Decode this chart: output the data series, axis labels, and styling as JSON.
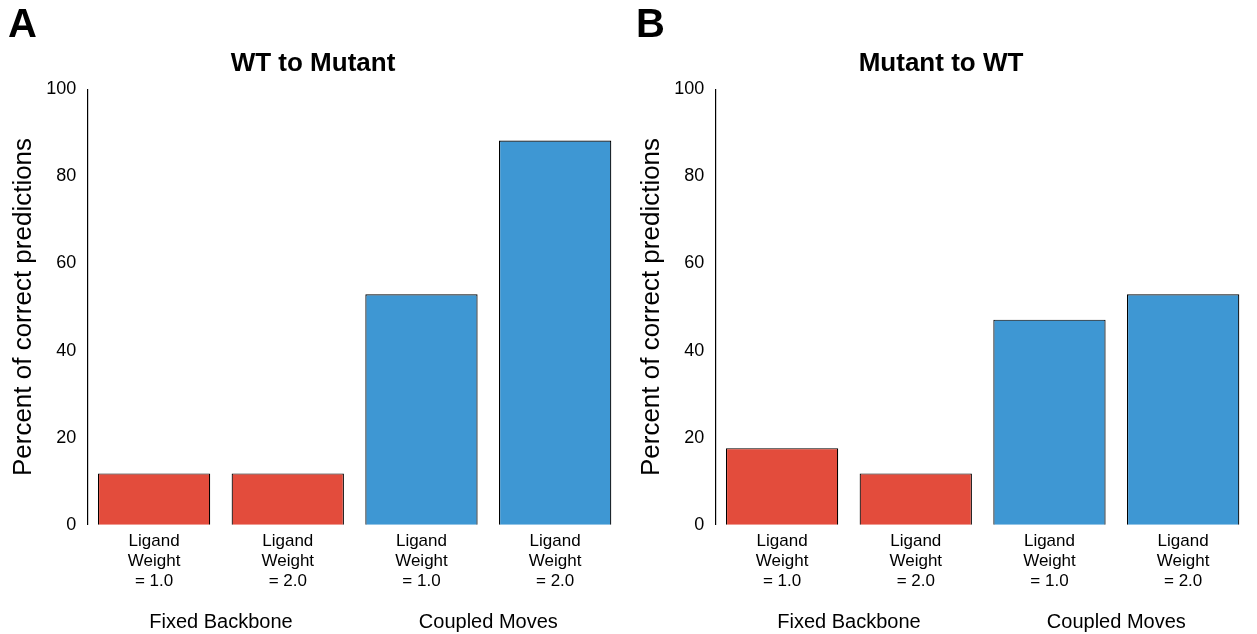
{
  "chart_data": [
    {
      "type": "bar",
      "title": "WT to Mutant",
      "ylabel": "Percent of correct predictions",
      "categories": [
        "Ligand Weight = 1.0",
        "Ligand Weight = 2.0",
        "Ligand Weight = 1.0",
        "Ligand Weight = 2.0"
      ],
      "values": [
        11.8,
        11.8,
        52.9,
        88.2
      ],
      "colors": [
        "#e34c3c",
        "#e34c3c",
        "#3e97d3",
        "#3e97d3"
      ],
      "ylim": [
        0,
        100
      ],
      "yticks": [
        0,
        20,
        40,
        60,
        80,
        100
      ],
      "grid": false,
      "legend": false,
      "annotations": [
        "A",
        "Fixed Backbone",
        "Coupled Moves"
      ]
    },
    {
      "type": "bar",
      "title": "Mutant to WT",
      "ylabel": "Percent of correct predictions",
      "categories": [
        "Ligand Weight = 1.0",
        "Ligand Weight = 2.0",
        "Ligand Weight = 1.0",
        "Ligand Weight = 2.0"
      ],
      "values": [
        17.6,
        11.8,
        47.1,
        52.9
      ],
      "colors": [
        "#e34c3c",
        "#e34c3c",
        "#3e97d3",
        "#3e97d3"
      ],
      "ylim": [
        0,
        100
      ],
      "yticks": [
        0,
        20,
        40,
        60,
        80,
        100
      ],
      "grid": false,
      "legend": false,
      "annotations": [
        "B",
        "Fixed Backbone",
        "Coupled Moves"
      ]
    }
  ]
}
